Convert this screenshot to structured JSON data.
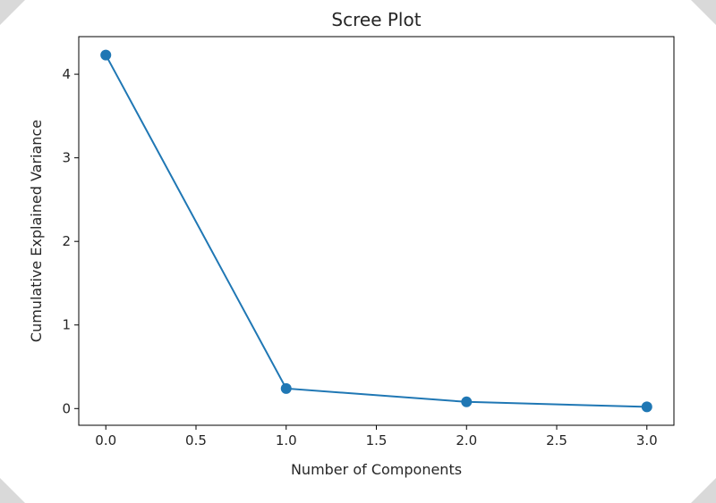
{
  "chart_data": {
    "type": "line",
    "title": "Scree Plot",
    "xlabel": "Number of Components",
    "ylabel": "Cumulative Explained Variance",
    "x": [
      0.0,
      1.0,
      2.0,
      3.0
    ],
    "series": [
      {
        "values": [
          4.23,
          0.24,
          0.08,
          0.02
        ],
        "color": "#1f77b4",
        "marker": "circle"
      }
    ],
    "xlim": [
      -0.15,
      3.15
    ],
    "ylim": [
      -0.2,
      4.45
    ],
    "xticks": [
      0.0,
      0.5,
      1.0,
      1.5,
      2.0,
      2.5,
      3.0
    ],
    "xtick_labels": [
      "0.0",
      "0.5",
      "1.0",
      "1.5",
      "2.0",
      "2.5",
      "3.0"
    ],
    "yticks": [
      0,
      1,
      2,
      3,
      4
    ],
    "ytick_labels": [
      "0",
      "1",
      "2",
      "3",
      "4"
    ],
    "grid": false,
    "legend": "none"
  }
}
